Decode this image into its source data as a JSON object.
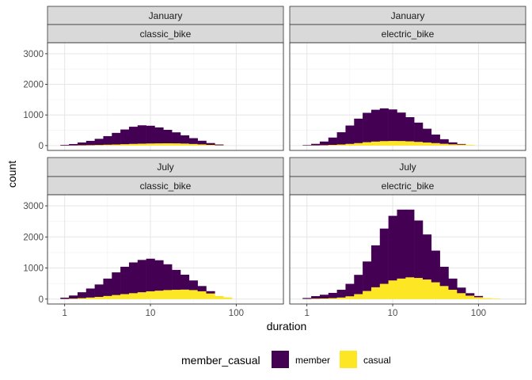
{
  "chart_data": {
    "type": "histogram",
    "title": "",
    "xlabel": "duration",
    "ylabel": "count",
    "x_scale": "log10",
    "x_ticks": [
      1,
      10,
      100
    ],
    "x_tick_labels": [
      "1",
      "10",
      "100"
    ],
    "ylim": [
      0,
      3200
    ],
    "y_ticks": [
      0,
      1000,
      2000,
      3000
    ],
    "y_tick_labels": [
      "0",
      "1000",
      "2000",
      "3000"
    ],
    "stacked": true,
    "grid": true,
    "legend": {
      "title": "member_casual",
      "position": "bottom",
      "entries": [
        {
          "name": "member",
          "color": "#440154"
        },
        {
          "name": "casual",
          "color": "#FDE725"
        }
      ]
    },
    "bin_width_log10": 0.1,
    "bin_start_log10": -0.05,
    "bin_centers": [
      1.0,
      1.26,
      1.58,
      2.0,
      2.51,
      3.16,
      3.98,
      5.01,
      6.31,
      7.94,
      10.0,
      12.6,
      15.8,
      20.0,
      25.1,
      31.6,
      39.8,
      50.1,
      63.1,
      79.4,
      100,
      126,
      158,
      200
    ],
    "panels": [
      {
        "month": "January",
        "rideable_type": "classic_bike",
        "series": [
          {
            "name": "member",
            "values": [
              20,
              45,
              90,
              140,
              200,
              280,
              380,
              480,
              560,
              600,
              580,
              520,
              440,
              360,
              270,
              190,
              120,
              60,
              25,
              0,
              0,
              0,
              0,
              0
            ]
          },
          {
            "name": "casual",
            "values": [
              3,
              5,
              10,
              14,
              20,
              28,
              35,
              45,
              55,
              62,
              68,
              72,
              74,
              72,
              65,
              52,
              38,
              22,
              10,
              0,
              0,
              0,
              0,
              0
            ]
          }
        ]
      },
      {
        "month": "January",
        "rideable_type": "electric_bike",
        "series": [
          {
            "name": "member",
            "values": [
              15,
              50,
              120,
              240,
              400,
              600,
              800,
              960,
              1040,
              1070,
              1030,
              930,
              790,
              630,
              450,
              280,
              150,
              65,
              22,
              0,
              0,
              0,
              0,
              0
            ]
          },
          {
            "name": "casual",
            "values": [
              3,
              6,
              12,
              22,
              35,
              55,
              80,
              110,
              130,
              145,
              150,
              148,
              138,
              120,
              100,
              80,
              58,
              40,
              30,
              20,
              0,
              0,
              0,
              0
            ]
          }
        ]
      },
      {
        "month": "July",
        "rideable_type": "classic_bike",
        "series": [
          {
            "name": "member",
            "values": [
              40,
              100,
              190,
              290,
              400,
              560,
              730,
              880,
              990,
              1040,
              1050,
              980,
              830,
              640,
              480,
              310,
              170,
              75,
              0,
              0,
              0,
              0,
              0,
              0
            ]
          },
          {
            "name": "casual",
            "values": [
              5,
              15,
              30,
              50,
              70,
              100,
              130,
              160,
              190,
              220,
              250,
              270,
              290,
              300,
              305,
              290,
              250,
              180,
              100,
              55,
              0,
              0,
              0,
              0
            ]
          }
        ]
      },
      {
        "month": "July",
        "rideable_type": "electric_bike",
        "series": [
          {
            "name": "member",
            "values": [
              30,
              80,
              120,
              170,
              250,
              400,
              620,
              950,
              1350,
              1780,
              2080,
              2220,
              2180,
              1850,
              1450,
              1020,
              620,
              360,
              180,
              80,
              40,
              0,
              0,
              0
            ]
          },
          {
            "name": "casual",
            "values": [
              5,
              15,
              20,
              30,
              50,
              90,
              160,
              260,
              380,
              490,
              600,
              660,
              700,
              680,
              630,
              540,
              420,
              300,
              190,
              110,
              60,
              30,
              15,
              0
            ]
          }
        ]
      }
    ]
  }
}
